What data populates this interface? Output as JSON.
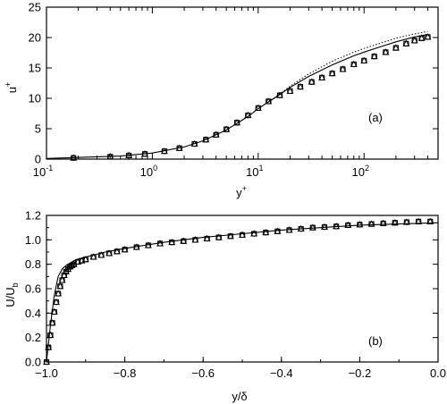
{
  "chart_data": [
    {
      "type": "line",
      "panel_label": "(a)",
      "xlabel": "y",
      "xlabel_sup": "+",
      "ylabel": "u",
      "ylabel_sup": "+",
      "xscale": "log",
      "xlim": [
        0.1,
        500
      ],
      "ylim": [
        0,
        25
      ],
      "yticks": [
        0,
        5,
        10,
        15,
        20,
        25
      ],
      "xticks": [
        {
          "value": 0.1,
          "base": "10",
          "exp": "-1"
        },
        {
          "value": 1,
          "base": "10",
          "exp": "0"
        },
        {
          "value": 10,
          "base": "10",
          "exp": "1"
        },
        {
          "value": 100,
          "base": "10",
          "exp": "2"
        }
      ],
      "series": [
        {
          "style": "solid",
          "x": [
            0.1,
            0.5,
            1,
            2,
            3,
            5,
            8,
            10,
            15,
            20,
            30,
            50,
            80,
            100,
            150,
            200,
            300,
            400
          ],
          "y": [
            0.1,
            0.5,
            1,
            2,
            3,
            4.8,
            7,
            8.3,
            10.3,
            11.8,
            13.6,
            15.5,
            17,
            17.6,
            18.6,
            19.3,
            20.1,
            20.5
          ]
        },
        {
          "style": "dotted",
          "x": [
            10,
            15,
            20,
            30,
            50,
            80,
            100,
            150,
            200,
            300,
            400
          ],
          "y": [
            8.3,
            10.4,
            12,
            14,
            16.1,
            17.6,
            18.2,
            19.2,
            19.9,
            20.6,
            21
          ]
        },
        {
          "style": "markers",
          "marker": "triangle",
          "x": [
            0.18,
            0.4,
            0.6,
            0.85,
            1.3,
            1.8,
            2.5,
            3.2,
            4,
            5,
            6.3,
            8,
            10,
            12.5,
            16,
            20,
            25,
            32,
            40,
            50,
            63,
            80,
            100,
            125,
            160,
            200,
            250,
            300,
            350,
            400
          ],
          "y": [
            0.2,
            0.4,
            0.6,
            0.85,
            1.3,
            1.8,
            2.5,
            3.2,
            4.0,
            4.9,
            6.0,
            7.2,
            8.4,
            9.5,
            10.5,
            11.2,
            11.9,
            12.7,
            13.4,
            14.1,
            14.8,
            15.6,
            16.2,
            16.9,
            17.6,
            18.3,
            19.0,
            19.5,
            19.9,
            20.1
          ]
        }
      ]
    },
    {
      "type": "line",
      "panel_label": "(b)",
      "xlabel": "y/δ",
      "ylabel": "U/U",
      "ylabel_sub": "b",
      "xlim": [
        -1.0,
        0.0
      ],
      "ylim": [
        0.0,
        1.2
      ],
      "xticks": [
        -1.0,
        -0.8,
        -0.6,
        -0.4,
        -0.2,
        0.0
      ],
      "yticks": [
        0.0,
        0.2,
        0.4,
        0.6,
        0.8,
        1.0,
        1.2
      ],
      "series": [
        {
          "style": "solid",
          "x": [
            -1.0,
            -0.99,
            -0.98,
            -0.97,
            -0.96,
            -0.95,
            -0.94,
            -0.93,
            -0.92,
            -0.9,
            -0.88,
            -0.85,
            -0.8,
            -0.7,
            -0.6,
            -0.5,
            -0.4,
            -0.3,
            -0.2,
            -0.1,
            0.0
          ],
          "y": [
            0.0,
            0.3,
            0.55,
            0.7,
            0.76,
            0.79,
            0.81,
            0.83,
            0.84,
            0.86,
            0.875,
            0.9,
            0.93,
            0.98,
            1.02,
            1.05,
            1.08,
            1.1,
            1.12,
            1.13,
            1.14
          ]
        },
        {
          "style": "markers",
          "marker": "triangle",
          "x": [
            -1.0,
            -0.995,
            -0.99,
            -0.985,
            -0.98,
            -0.975,
            -0.97,
            -0.965,
            -0.96,
            -0.955,
            -0.95,
            -0.945,
            -0.94,
            -0.935,
            -0.93,
            -0.92,
            -0.91,
            -0.9,
            -0.88,
            -0.86,
            -0.84,
            -0.82,
            -0.8,
            -0.77,
            -0.74,
            -0.71,
            -0.68,
            -0.65,
            -0.62,
            -0.59,
            -0.56,
            -0.53,
            -0.5,
            -0.47,
            -0.44,
            -0.41,
            -0.38,
            -0.35,
            -0.32,
            -0.29,
            -0.26,
            -0.23,
            -0.2,
            -0.17,
            -0.14,
            -0.11,
            -0.08,
            -0.05,
            -0.02
          ],
          "y": [
            0.0,
            0.12,
            0.22,
            0.32,
            0.41,
            0.49,
            0.56,
            0.62,
            0.67,
            0.71,
            0.74,
            0.76,
            0.78,
            0.79,
            0.8,
            0.82,
            0.83,
            0.84,
            0.86,
            0.875,
            0.89,
            0.905,
            0.92,
            0.94,
            0.955,
            0.97,
            0.98,
            0.99,
            1.0,
            1.01,
            1.02,
            1.03,
            1.04,
            1.05,
            1.06,
            1.07,
            1.08,
            1.09,
            1.1,
            1.105,
            1.11,
            1.12,
            1.125,
            1.13,
            1.135,
            1.14,
            1.145,
            1.15,
            1.15
          ]
        }
      ]
    }
  ]
}
